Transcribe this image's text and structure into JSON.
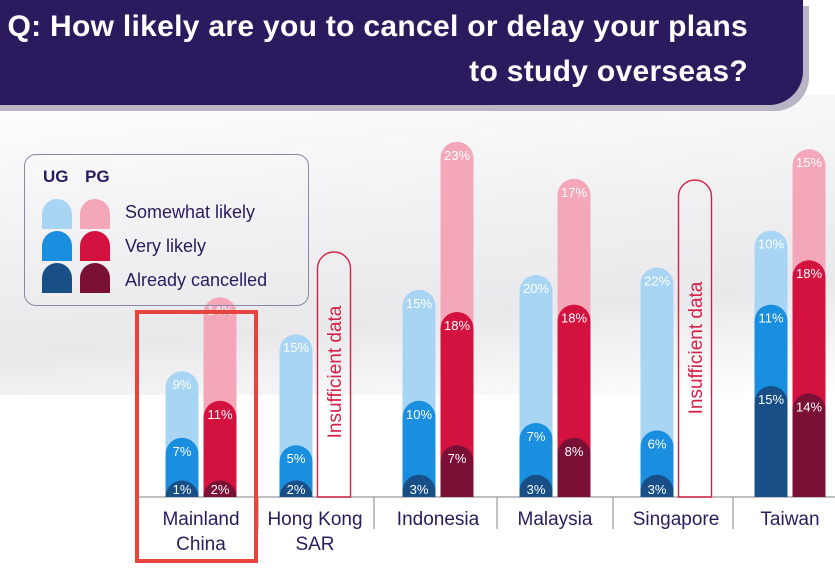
{
  "header": {
    "title": "Q: How likely are you to cancel or delay your plans to study overseas?"
  },
  "legend": {
    "ug": "UG",
    "pg": "PG",
    "items": [
      "Somewhat likely",
      "Very likely",
      "Already cancelled"
    ]
  },
  "colors": {
    "ug": [
      "#6a9fd8",
      "#1a8fe0",
      "#184f86"
    ],
    "ug_light": "#a9d5f5",
    "pg": [
      "#f3a7b9",
      "#d4123f",
      "#7a1035"
    ],
    "insufficient_border": "#d42045",
    "highlight": "#e8433c",
    "text": "#2b1a5e"
  },
  "chart_data": {
    "type": "bar",
    "title": "Q: How likely are you to cancel or delay your plans to study overseas?",
    "stacked": true,
    "categories": [
      "Mainland China",
      "Hong Kong SAR",
      "Indonesia",
      "Malaysia",
      "Singapore",
      "Taiwan"
    ],
    "category_lines": [
      [
        "Mainland",
        "China"
      ],
      [
        "Hong Kong",
        "SAR"
      ],
      [
        "Indonesia"
      ],
      [
        "Malaysia"
      ],
      [
        "Singapore"
      ],
      [
        "Taiwan"
      ]
    ],
    "groups": [
      "UG",
      "PG"
    ],
    "series": [
      {
        "name": "Already cancelled",
        "UG": [
          1,
          2,
          3,
          3,
          3,
          15
        ],
        "PG": [
          2,
          null,
          7,
          8,
          null,
          14
        ]
      },
      {
        "name": "Very likely",
        "UG": [
          7,
          5,
          10,
          7,
          6,
          11
        ],
        "PG": [
          11,
          null,
          18,
          18,
          null,
          18
        ]
      },
      {
        "name": "Somewhat likely",
        "UG": [
          9,
          15,
          15,
          20,
          22,
          10
        ],
        "PG": [
          14,
          null,
          23,
          17,
          null,
          15
        ]
      }
    ],
    "insufficient": [
      {
        "category": "Hong Kong SAR",
        "group": "PG",
        "label": "Insufficient data"
      },
      {
        "category": "Singapore",
        "group": "PG",
        "label": "Insufficient data"
      }
    ],
    "highlighted_category": "Mainland China",
    "ylim": [
      0,
      60
    ]
  }
}
